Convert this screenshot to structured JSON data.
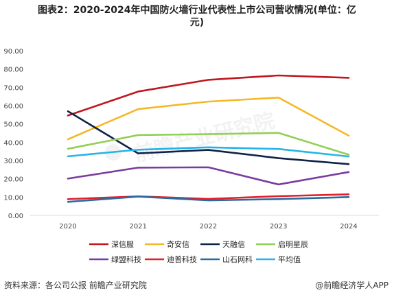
{
  "title": {
    "line1": "图表2：2020-2024年中国防火墙行业代表性上市公司营收情况(单位：亿",
    "line2": "元)"
  },
  "footer": {
    "source": "资料来源：各公司公报 前瞻产业研究院",
    "brand": "@前瞻经济学人APP"
  },
  "watermark": "前瞻产业研究院",
  "chart_data": {
    "type": "line",
    "x": [
      "2020",
      "2021",
      "2022",
      "2023",
      "2024"
    ],
    "ylim": [
      0,
      90
    ],
    "yticks": [
      "0.00",
      "10.00",
      "20.00",
      "30.00",
      "40.00",
      "50.00",
      "60.00",
      "70.00",
      "80.00",
      "90.00"
    ],
    "grid": false,
    "legend_position": "bottom",
    "series": [
      {
        "name": "深信服",
        "color": "#c0161f",
        "values": [
          54.6,
          67.7,
          74.1,
          76.5,
          75.2
        ]
      },
      {
        "name": "奇安信",
        "color": "#f5b824",
        "values": [
          41.6,
          58.1,
          62.2,
          64.4,
          43.6
        ]
      },
      {
        "name": "天融信",
        "color": "#0f2347",
        "values": [
          56.9,
          33.9,
          35.8,
          31.3,
          28.0
        ]
      },
      {
        "name": "启明星辰",
        "color": "#92cf55",
        "values": [
          36.4,
          43.9,
          44.4,
          45.1,
          33.2
        ]
      },
      {
        "name": "绿盟科技",
        "color": "#7b3b9e",
        "values": [
          20.1,
          26.1,
          26.3,
          16.9,
          23.7
        ]
      },
      {
        "name": "迪普科技",
        "color": "#e0202a",
        "values": [
          8.9,
          10.4,
          9.0,
          10.5,
          11.5
        ]
      },
      {
        "name": "山石网科",
        "color": "#2e6a9f",
        "values": [
          7.4,
          10.3,
          8.2,
          8.9,
          10.0
        ]
      },
      {
        "name": "平均值",
        "color": "#25b3e8",
        "values": [
          32.3,
          35.9,
          37.2,
          36.3,
          32.2
        ]
      }
    ]
  }
}
